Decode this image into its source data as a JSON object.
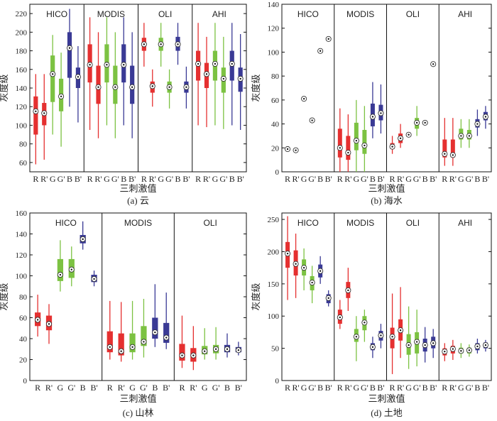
{
  "chart_data": [
    {
      "type": "box",
      "caption": "(a) 云",
      "xlabel": "三刺激值",
      "ylabel": "灰度级",
      "ylim": [
        50,
        230
      ],
      "yticks": [
        60,
        80,
        100,
        120,
        140,
        160,
        180,
        200,
        220
      ],
      "categories": [
        "R",
        "R'",
        "G",
        "G'",
        "B",
        "B'"
      ],
      "colors": [
        "#e53030",
        "#e53030",
        "#7cc242",
        "#7cc242",
        "#3a3a95",
        "#3a3a95"
      ],
      "groups": [
        {
          "name": "HICO",
          "boxes": [
            {
              "min": 58,
              "q1": 90,
              "median": 115,
              "q3": 131,
              "max": 155
            },
            {
              "min": 63,
              "q1": 100,
              "median": 113,
              "q3": 124,
              "max": 155
            },
            {
              "min": 90,
              "q1": 125,
              "median": 155,
              "q3": 175,
              "max": 197
            },
            {
              "min": 77,
              "q1": 115,
              "median": 131,
              "q3": 150,
              "max": 178
            },
            {
              "min": 120,
              "q1": 151,
              "median": 183,
              "q3": 200,
              "max": 225
            },
            {
              "min": 103,
              "q1": 140,
              "median": 152,
              "q3": 162,
              "max": 185
            }
          ]
        },
        {
          "name": "MODIS",
          "boxes": [
            {
              "min": 95,
              "q1": 146,
              "median": 165,
              "q3": 187,
              "max": 216
            },
            {
              "min": 86,
              "q1": 123,
              "median": 141,
              "q3": 164,
              "max": 200
            },
            {
              "min": 100,
              "q1": 146,
              "median": 165,
              "q3": 187,
              "max": 216
            },
            {
              "min": 86,
              "q1": 123,
              "median": 141,
              "q3": 164,
              "max": 200
            },
            {
              "min": 100,
              "q1": 146,
              "median": 165,
              "q3": 187,
              "max": 216
            },
            {
              "min": 86,
              "q1": 123,
              "median": 141,
              "q3": 164,
              "max": 200
            }
          ]
        },
        {
          "name": "OLI",
          "boxes": [
            {
              "min": 163,
              "q1": 180,
              "median": 187,
              "q3": 194,
              "max": 210
            },
            {
              "min": 120,
              "q1": 135,
              "median": 142,
              "q3": 147,
              "max": 160
            },
            {
              "min": 163,
              "q1": 180,
              "median": 187,
              "q3": 194,
              "max": 210
            },
            {
              "min": 118,
              "q1": 135,
              "median": 141,
              "q3": 147,
              "max": 160
            },
            {
              "min": 165,
              "q1": 180,
              "median": 187,
              "q3": 195,
              "max": 210
            },
            {
              "min": 118,
              "q1": 135,
              "median": 141,
              "q3": 147,
              "max": 163
            }
          ]
        },
        {
          "name": "AHI",
          "boxes": [
            {
              "min": 100,
              "q1": 148,
              "median": 166,
              "q3": 180,
              "max": 210
            },
            {
              "min": 98,
              "q1": 140,
              "median": 155,
              "q3": 167,
              "max": 195
            },
            {
              "min": 100,
              "q1": 148,
              "median": 166,
              "q3": 180,
              "max": 210
            },
            {
              "min": 96,
              "q1": 135,
              "median": 150,
              "q3": 162,
              "max": 195
            },
            {
              "min": 100,
              "q1": 148,
              "median": 166,
              "q3": 180,
              "max": 210
            },
            {
              "min": 95,
              "q1": 136,
              "median": 150,
              "q3": 162,
              "max": 198
            }
          ]
        }
      ]
    },
    {
      "type": "box",
      "caption": "(b) 海水",
      "xlabel": "三刺激值",
      "ylabel": "灰度级",
      "ylim": [
        0,
        140
      ],
      "yticks": [
        0,
        20,
        40,
        60,
        80,
        100,
        120,
        140
      ],
      "categories": [
        "R",
        "R'",
        "G",
        "G'",
        "B",
        "B'"
      ],
      "colors": [
        "#e53030",
        "#e53030",
        "#7cc242",
        "#7cc242",
        "#3a3a95",
        "#3a3a95"
      ],
      "groups": [
        {
          "name": "HICO",
          "boxes": [
            {
              "min": 18,
              "q1": 18.5,
              "median": 19,
              "q3": 19.5,
              "max": 20
            },
            {
              "min": 17,
              "q1": 17.5,
              "median": 18,
              "q3": 18.5,
              "max": 19
            },
            {
              "min": 60,
              "q1": 60.5,
              "median": 61,
              "q3": 61.5,
              "max": 62
            },
            {
              "min": 42,
              "q1": 42.5,
              "median": 43,
              "q3": 43.5,
              "max": 44
            },
            {
              "min": 100,
              "q1": 100.5,
              "median": 101,
              "q3": 101.5,
              "max": 102
            },
            {
              "min": 110,
              "q1": 110.5,
              "median": 111,
              "q3": 111.5,
              "max": 112
            }
          ]
        },
        {
          "name": "MODIS",
          "boxes": [
            {
              "min": 0,
              "q1": 12,
              "median": 20,
              "q3": 36,
              "max": 53
            },
            {
              "min": 0,
              "q1": 10,
              "median": 16,
              "q3": 30,
              "max": 48
            },
            {
              "min": 0,
              "q1": 18,
              "median": 26,
              "q3": 41,
              "max": 60
            },
            {
              "min": 0,
              "q1": 15,
              "median": 22,
              "q3": 35,
              "max": 55
            },
            {
              "min": 28,
              "q1": 38,
              "median": 46,
              "q3": 57,
              "max": 75
            },
            {
              "min": 32,
              "q1": 43,
              "median": 49,
              "q3": 56,
              "max": 73
            }
          ]
        },
        {
          "name": "OLI",
          "boxes": [
            {
              "min": 15,
              "q1": 19,
              "median": 21,
              "q3": 24,
              "max": 30
            },
            {
              "min": 20,
              "q1": 24,
              "median": 28,
              "q3": 32,
              "max": 40
            },
            {
              "min": 30,
              "q1": 30.5,
              "median": 31,
              "q3": 31.5,
              "max": 32
            },
            {
              "min": 30,
              "q1": 36,
              "median": 41,
              "q3": 45,
              "max": 55
            },
            {
              "min": 40,
              "q1": 40.5,
              "median": 41,
              "q3": 41.5,
              "max": 42
            },
            {
              "min": 89,
              "q1": 89.5,
              "median": 90,
              "q3": 90.5,
              "max": 91
            }
          ]
        },
        {
          "name": "AHI",
          "boxes": [
            {
              "min": 5,
              "q1": 12,
              "median": 15,
              "q3": 27,
              "max": 45
            },
            {
              "min": 5,
              "q1": 12,
              "median": 14,
              "q3": 27,
              "max": 45
            },
            {
              "min": 20,
              "q1": 27,
              "median": 30,
              "q3": 36,
              "max": 44
            },
            {
              "min": 20,
              "q1": 27,
              "median": 30,
              "q3": 35,
              "max": 44
            },
            {
              "min": 30,
              "q1": 37,
              "median": 40,
              "q3": 44,
              "max": 52
            },
            {
              "min": 36,
              "q1": 43,
              "median": 46,
              "q3": 50,
              "max": 55
            }
          ]
        }
      ]
    },
    {
      "type": "box",
      "caption": "(c) 山林",
      "xlabel": "三刺激值",
      "ylabel": "灰度级",
      "ylim": [
        0,
        160
      ],
      "yticks": [
        0,
        20,
        40,
        60,
        80,
        100,
        120,
        140,
        160
      ],
      "categories": [
        "R",
        "R'",
        "G",
        "G'",
        "B",
        "B'"
      ],
      "colors": [
        "#e53030",
        "#e53030",
        "#7cc242",
        "#7cc242",
        "#3a3a95",
        "#3a3a95"
      ],
      "groups": [
        {
          "name": "HICO",
          "boxes": [
            {
              "min": 42,
              "q1": 52,
              "median": 58,
              "q3": 65,
              "max": 82
            },
            {
              "min": 35,
              "q1": 48,
              "median": 54,
              "q3": 62,
              "max": 73
            },
            {
              "min": 85,
              "q1": 95,
              "median": 101,
              "q3": 116,
              "max": 134
            },
            {
              "min": 90,
              "q1": 98,
              "median": 106,
              "q3": 116,
              "max": 128
            },
            {
              "min": 125,
              "q1": 131,
              "median": 135,
              "q3": 139,
              "max": 152
            },
            {
              "min": 90,
              "q1": 94,
              "median": 97,
              "q3": 101,
              "max": 105
            }
          ]
        },
        {
          "name": "MODIS",
          "boxes": [
            {
              "min": 20,
              "q1": 27,
              "median": 32,
              "q3": 47,
              "max": 76
            },
            {
              "min": 18,
              "q1": 24,
              "median": 28,
              "q3": 45,
              "max": 75
            },
            {
              "min": 20,
              "q1": 27,
              "median": 32,
              "q3": 45,
              "max": 76
            },
            {
              "min": 22,
              "q1": 33,
              "median": 37,
              "q3": 52,
              "max": 78
            },
            {
              "min": 32,
              "q1": 40,
              "median": 46,
              "q3": 60,
              "max": 92
            },
            {
              "min": 30,
              "q1": 36,
              "median": 41,
              "q3": 55,
              "max": 84
            }
          ]
        },
        {
          "name": "OLI",
          "boxes": [
            {
              "min": 12,
              "q1": 19,
              "median": 24,
              "q3": 35,
              "max": 62
            },
            {
              "min": 10,
              "q1": 18,
              "median": 24,
              "q3": 31,
              "max": 52
            },
            {
              "min": 20,
              "q1": 25,
              "median": 28,
              "q3": 33,
              "max": 50
            },
            {
              "min": 20,
              "q1": 26,
              "median": 30,
              "q3": 34,
              "max": 51
            },
            {
              "min": 22,
              "q1": 27,
              "median": 30,
              "q3": 34,
              "max": 45
            },
            {
              "min": 24,
              "q1": 27,
              "median": 29,
              "q3": 32,
              "max": 37
            }
          ]
        }
      ]
    },
    {
      "type": "box",
      "caption": "(d) 土地",
      "xlabel": "三刺激值",
      "ylabel": "灰度级",
      "ylim": [
        0,
        260
      ],
      "yticks": [
        0,
        50,
        100,
        150,
        200,
        250
      ],
      "categories": [
        "R",
        "R'",
        "G",
        "G'",
        "B",
        "B'"
      ],
      "colors": [
        "#e53030",
        "#e53030",
        "#7cc242",
        "#7cc242",
        "#3a3a95",
        "#3a3a95"
      ],
      "groups": [
        {
          "name": "HICO",
          "boxes": [
            {
              "min": 125,
              "q1": 175,
              "median": 197,
              "q3": 215,
              "max": 255
            },
            {
              "min": 128,
              "q1": 163,
              "median": 181,
              "q3": 202,
              "max": 228
            },
            {
              "min": 140,
              "q1": 163,
              "median": 175,
              "q3": 188,
              "max": 205
            },
            {
              "min": 120,
              "q1": 140,
              "median": 152,
              "q3": 162,
              "max": 178
            },
            {
              "min": 150,
              "q1": 160,
              "median": 170,
              "q3": 180,
              "max": 193
            },
            {
              "min": 115,
              "q1": 120,
              "median": 128,
              "q3": 134,
              "max": 140
            }
          ]
        },
        {
          "name": "MODIS",
          "boxes": [
            {
              "min": 80,
              "q1": 88,
              "median": 98,
              "q3": 110,
              "max": 125
            },
            {
              "min": 108,
              "q1": 128,
              "median": 140,
              "q3": 153,
              "max": 175
            },
            {
              "min": 30,
              "q1": 60,
              "median": 68,
              "q3": 80,
              "max": 100
            },
            {
              "min": 60,
              "q1": 78,
              "median": 90,
              "q3": 100,
              "max": 110
            },
            {
              "min": 35,
              "q1": 47,
              "median": 52,
              "q3": 58,
              "max": 68
            },
            {
              "min": 50,
              "q1": 62,
              "median": 70,
              "q3": 77,
              "max": 88
            }
          ]
        },
        {
          "name": "OLI",
          "boxes": [
            {
              "min": 10,
              "q1": 50,
              "median": 68,
              "q3": 82,
              "max": 135
            },
            {
              "min": 35,
              "q1": 62,
              "median": 78,
              "q3": 95,
              "max": 145
            },
            {
              "min": 18,
              "q1": 40,
              "median": 55,
              "q3": 72,
              "max": 115
            },
            {
              "min": 22,
              "q1": 42,
              "median": 60,
              "q3": 75,
              "max": 110
            },
            {
              "min": 28,
              "q1": 45,
              "median": 55,
              "q3": 65,
              "max": 83
            },
            {
              "min": 35,
              "q1": 50,
              "median": 58,
              "q3": 68,
              "max": 80
            }
          ]
        },
        {
          "name": "AHI",
          "boxes": [
            {
              "min": 30,
              "q1": 39,
              "median": 45,
              "q3": 50,
              "max": 58
            },
            {
              "min": 32,
              "q1": 42,
              "median": 49,
              "q3": 54,
              "max": 63
            },
            {
              "min": 35,
              "q1": 42,
              "median": 46,
              "q3": 51,
              "max": 58
            },
            {
              "min": 37,
              "q1": 42,
              "median": 47,
              "q3": 51,
              "max": 56
            },
            {
              "min": 42,
              "q1": 47,
              "median": 53,
              "q3": 58,
              "max": 65
            },
            {
              "min": 45,
              "q1": 50,
              "median": 55,
              "q3": 59,
              "max": 63
            }
          ]
        }
      ]
    }
  ]
}
